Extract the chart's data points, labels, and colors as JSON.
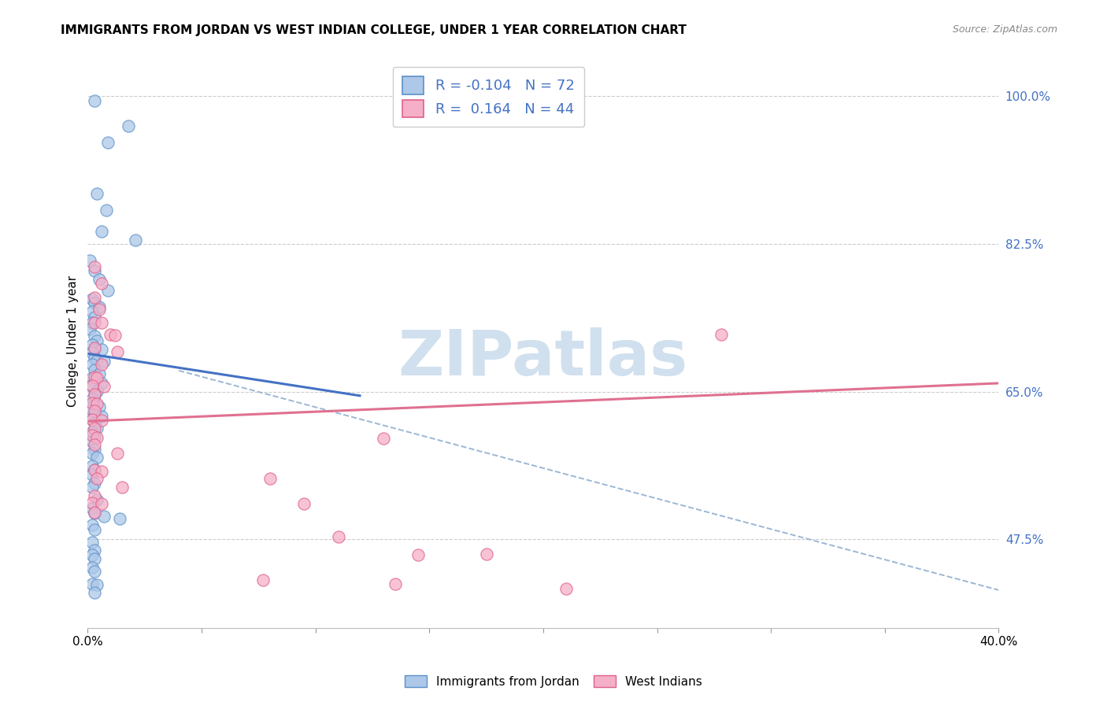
{
  "title": "IMMIGRANTS FROM JORDAN VS WEST INDIAN COLLEGE, UNDER 1 YEAR CORRELATION CHART",
  "source": "Source: ZipAtlas.com",
  "ylabel": "College, Under 1 year",
  "R_jordan": -0.104,
  "N_jordan": 72,
  "R_west": 0.164,
  "N_west": 44,
  "jordan_fill": "#adc8e8",
  "jordan_edge": "#5b8fc9",
  "west_fill": "#f5afc8",
  "west_edge": "#e0608a",
  "jordan_line_color": "#4472c4",
  "west_line_color": "#e07090",
  "dash_color": "#90b0d0",
  "watermark_color": "#d0e0ee",
  "ytick_color": "#4472c4",
  "xlim": [
    0.0,
    0.4
  ],
  "ylim": [
    0.37,
    1.05
  ],
  "yticks": [
    1.0,
    0.825,
    0.65,
    0.475
  ],
  "jordan_line_x": [
    0.0,
    0.12
  ],
  "jordan_line_y": [
    0.695,
    0.645
  ],
  "west_line_x": [
    0.0,
    0.4
  ],
  "west_line_y": [
    0.615,
    0.66
  ],
  "dash_line_x": [
    0.04,
    0.4
  ],
  "dash_line_y": [
    0.675,
    0.415
  ],
  "jordan_points": [
    [
      0.003,
      0.995
    ],
    [
      0.009,
      0.945
    ],
    [
      0.018,
      0.965
    ],
    [
      0.004,
      0.885
    ],
    [
      0.008,
      0.865
    ],
    [
      0.006,
      0.84
    ],
    [
      0.021,
      0.83
    ],
    [
      0.001,
      0.805
    ],
    [
      0.003,
      0.793
    ],
    [
      0.005,
      0.783
    ],
    [
      0.009,
      0.77
    ],
    [
      0.002,
      0.76
    ],
    [
      0.003,
      0.755
    ],
    [
      0.005,
      0.75
    ],
    [
      0.002,
      0.745
    ],
    [
      0.003,
      0.738
    ],
    [
      0.002,
      0.732
    ],
    [
      0.001,
      0.724
    ],
    [
      0.003,
      0.716
    ],
    [
      0.004,
      0.71
    ],
    [
      0.002,
      0.706
    ],
    [
      0.003,
      0.7
    ],
    [
      0.006,
      0.7
    ],
    [
      0.002,
      0.696
    ],
    [
      0.003,
      0.69
    ],
    [
      0.004,
      0.687
    ],
    [
      0.007,
      0.686
    ],
    [
      0.002,
      0.682
    ],
    [
      0.003,
      0.676
    ],
    [
      0.005,
      0.671
    ],
    [
      0.002,
      0.666
    ],
    [
      0.003,
      0.662
    ],
    [
      0.006,
      0.66
    ],
    [
      0.002,
      0.656
    ],
    [
      0.004,
      0.651
    ],
    [
      0.003,
      0.646
    ],
    [
      0.002,
      0.641
    ],
    [
      0.003,
      0.637
    ],
    [
      0.005,
      0.632
    ],
    [
      0.002,
      0.628
    ],
    [
      0.003,
      0.623
    ],
    [
      0.006,
      0.621
    ],
    [
      0.002,
      0.617
    ],
    [
      0.003,
      0.612
    ],
    [
      0.004,
      0.607
    ],
    [
      0.002,
      0.602
    ],
    [
      0.003,
      0.597
    ],
    [
      0.002,
      0.591
    ],
    [
      0.003,
      0.582
    ],
    [
      0.002,
      0.577
    ],
    [
      0.004,
      0.572
    ],
    [
      0.002,
      0.562
    ],
    [
      0.003,
      0.557
    ],
    [
      0.002,
      0.552
    ],
    [
      0.003,
      0.542
    ],
    [
      0.002,
      0.537
    ],
    [
      0.004,
      0.522
    ],
    [
      0.002,
      0.512
    ],
    [
      0.003,
      0.506
    ],
    [
      0.007,
      0.502
    ],
    [
      0.014,
      0.5
    ],
    [
      0.002,
      0.492
    ],
    [
      0.003,
      0.487
    ],
    [
      0.002,
      0.472
    ],
    [
      0.003,
      0.462
    ],
    [
      0.002,
      0.457
    ],
    [
      0.003,
      0.452
    ],
    [
      0.002,
      0.442
    ],
    [
      0.003,
      0.437
    ],
    [
      0.002,
      0.422
    ],
    [
      0.004,
      0.421
    ],
    [
      0.003,
      0.412
    ]
  ],
  "west_points": [
    [
      0.003,
      0.798
    ],
    [
      0.006,
      0.778
    ],
    [
      0.003,
      0.762
    ],
    [
      0.005,
      0.748
    ],
    [
      0.003,
      0.732
    ],
    [
      0.006,
      0.732
    ],
    [
      0.01,
      0.718
    ],
    [
      0.012,
      0.717
    ],
    [
      0.003,
      0.702
    ],
    [
      0.013,
      0.697
    ],
    [
      0.006,
      0.682
    ],
    [
      0.003,
      0.667
    ],
    [
      0.004,
      0.666
    ],
    [
      0.002,
      0.657
    ],
    [
      0.007,
      0.656
    ],
    [
      0.003,
      0.647
    ],
    [
      0.002,
      0.637
    ],
    [
      0.004,
      0.636
    ],
    [
      0.003,
      0.627
    ],
    [
      0.002,
      0.617
    ],
    [
      0.006,
      0.616
    ],
    [
      0.003,
      0.607
    ],
    [
      0.002,
      0.598
    ],
    [
      0.004,
      0.596
    ],
    [
      0.003,
      0.587
    ],
    [
      0.013,
      0.577
    ],
    [
      0.003,
      0.557
    ],
    [
      0.006,
      0.556
    ],
    [
      0.004,
      0.547
    ],
    [
      0.015,
      0.537
    ],
    [
      0.003,
      0.527
    ],
    [
      0.002,
      0.518
    ],
    [
      0.006,
      0.517
    ],
    [
      0.003,
      0.507
    ],
    [
      0.278,
      0.718
    ],
    [
      0.13,
      0.595
    ],
    [
      0.08,
      0.547
    ],
    [
      0.095,
      0.517
    ],
    [
      0.11,
      0.478
    ],
    [
      0.175,
      0.458
    ],
    [
      0.145,
      0.457
    ],
    [
      0.077,
      0.427
    ],
    [
      0.135,
      0.422
    ],
    [
      0.21,
      0.417
    ]
  ]
}
